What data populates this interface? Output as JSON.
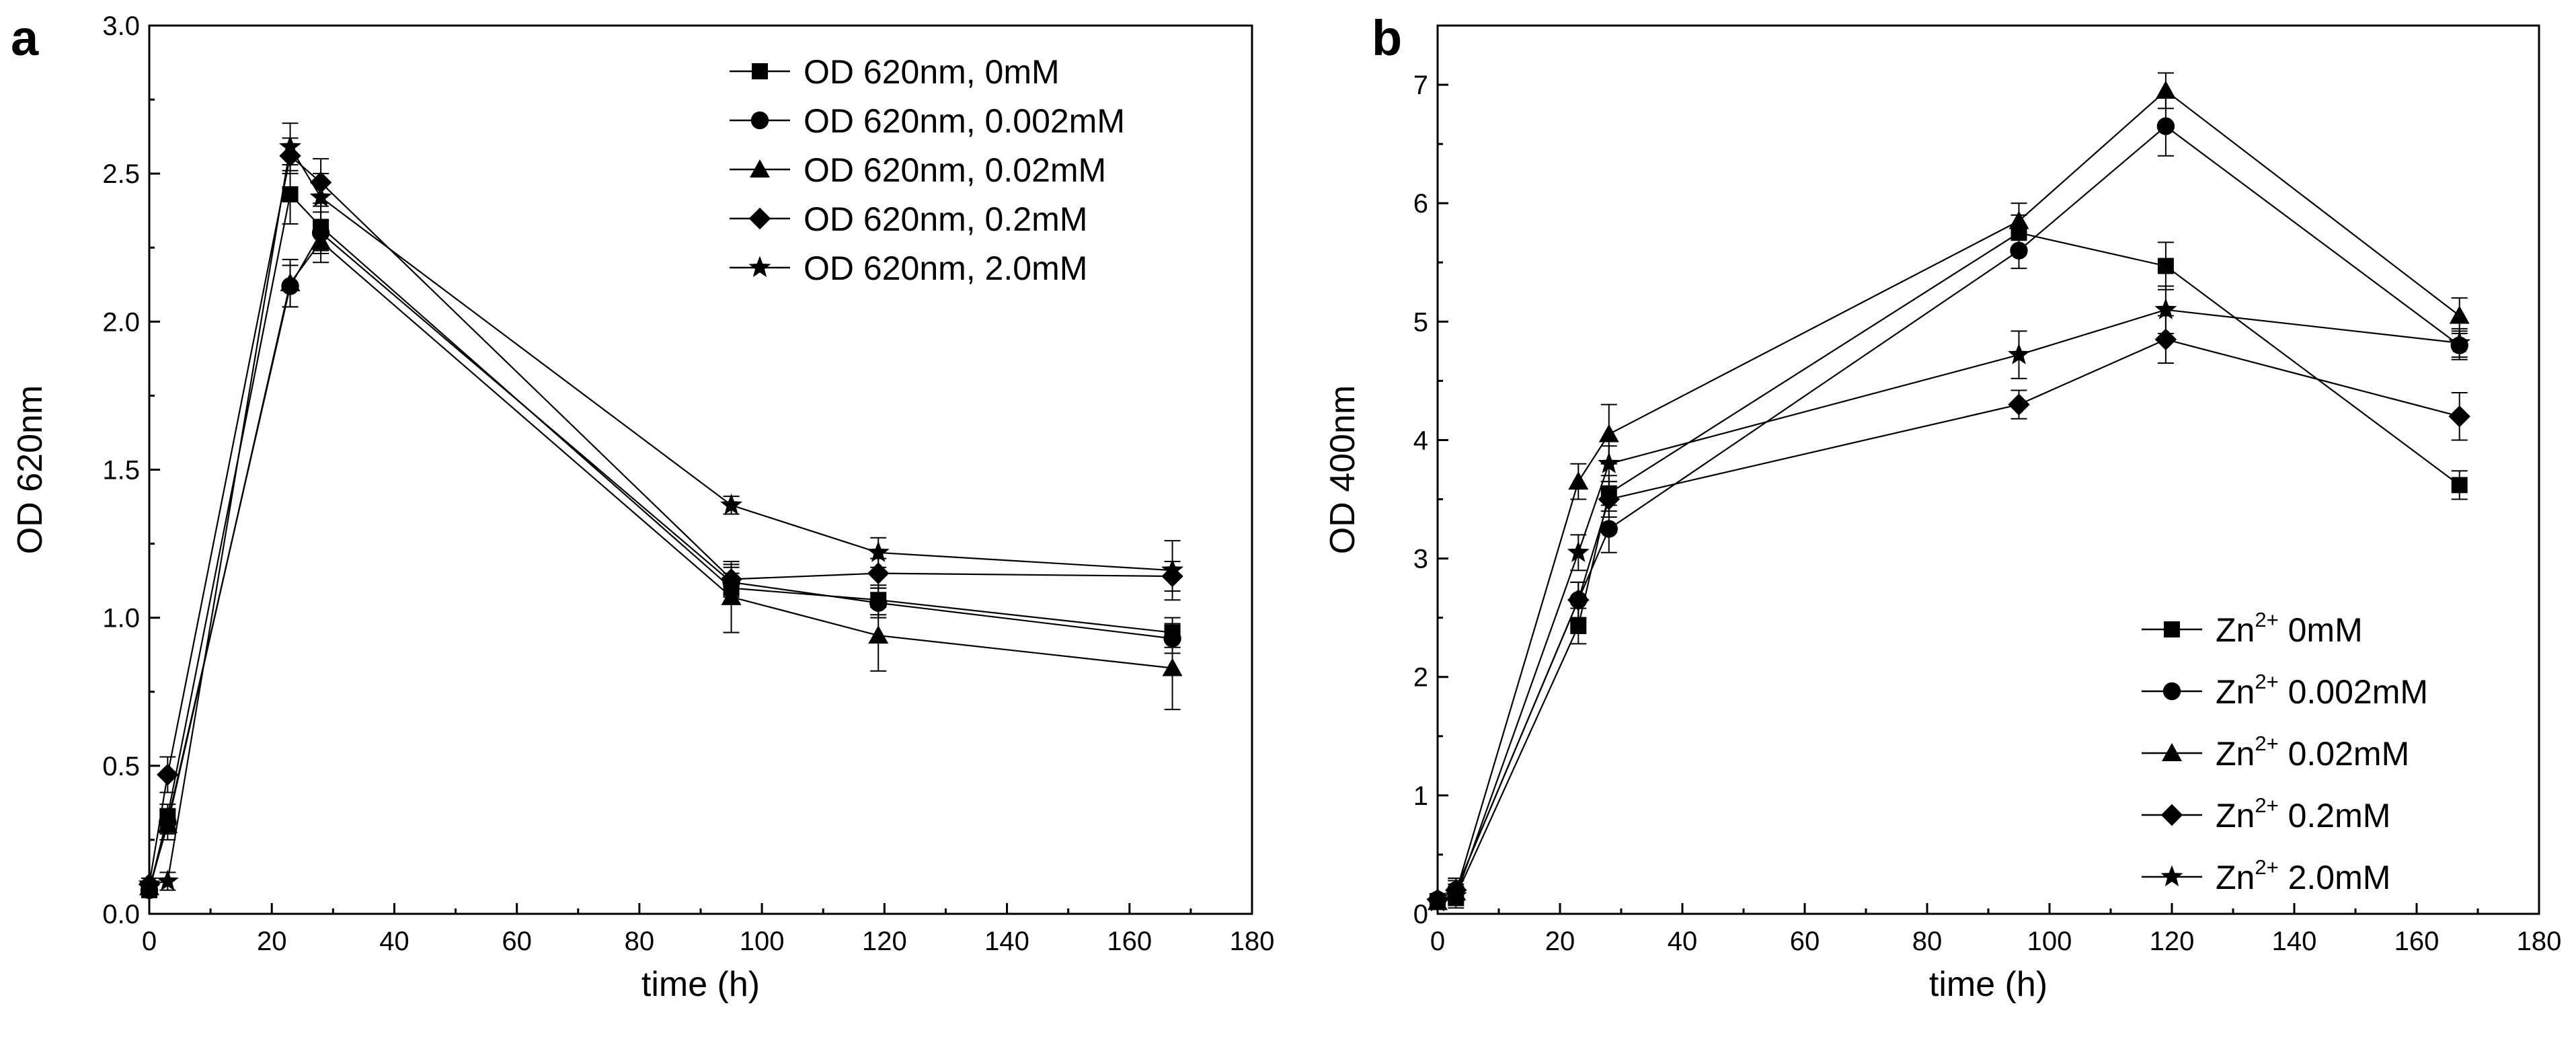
{
  "chart_data": [
    {
      "type": "line",
      "panel_label": "a",
      "xlabel": "time (h)",
      "ylabel": "OD 620nm",
      "xlim": [
        0,
        180
      ],
      "ylim": [
        0,
        3.0
      ],
      "xticks": [
        "0",
        "20",
        "40",
        "60",
        "80",
        "100",
        "120",
        "140",
        "160",
        "180"
      ],
      "yticks": [
        "0.0",
        "0.5",
        "1.0",
        "1.5",
        "2.0",
        "2.5",
        "3.0"
      ],
      "legend_position": "top-right",
      "x": [
        0,
        3,
        23,
        28,
        95,
        119,
        167
      ],
      "series": [
        {
          "name": "OD 620nm, 0mM",
          "legend": "OD 620nm, 0mM",
          "marker": "square",
          "values": [
            0.08,
            0.33,
            2.43,
            2.32,
            1.1,
            1.06,
            0.95
          ],
          "errors": [
            0.02,
            0.04,
            0.1,
            0.08,
            0.05,
            0.05,
            0.05
          ]
        },
        {
          "name": "OD 620nm, 0.002mM",
          "legend": "OD 620nm, 0.002mM",
          "marker": "circle",
          "values": [
            0.08,
            0.31,
            2.12,
            2.3,
            1.12,
            1.05,
            0.93
          ],
          "errors": [
            0.02,
            0.04,
            0.07,
            0.07,
            0.05,
            0.05,
            0.05
          ]
        },
        {
          "name": "OD 620nm, 0.02mM",
          "legend": "OD 620nm, 0.02mM",
          "marker": "triangle",
          "values": [
            0.09,
            0.3,
            2.13,
            2.27,
            1.07,
            0.94,
            0.83
          ],
          "errors": [
            0.02,
            0.05,
            0.08,
            0.07,
            0.12,
            0.12,
            0.14
          ]
        },
        {
          "name": "OD 620nm, 0.2mM",
          "legend": "OD 620nm, 0.2mM",
          "marker": "diamond",
          "values": [
            0.1,
            0.47,
            2.56,
            2.47,
            1.13,
            1.15,
            1.14
          ],
          "errors": [
            0.02,
            0.06,
            0.06,
            0.08,
            0.05,
            0.05,
            0.05
          ]
        },
        {
          "name": "OD 620nm, 2.0mM",
          "legend": "OD 620nm, 2.0mM",
          "marker": "star",
          "values": [
            0.1,
            0.11,
            2.59,
            2.42,
            1.38,
            1.22,
            1.16
          ],
          "errors": [
            0.02,
            0.03,
            0.08,
            0.08,
            0.03,
            0.05,
            0.1
          ]
        }
      ]
    },
    {
      "type": "line",
      "panel_label": "b",
      "xlabel": "time (h)",
      "ylabel": "OD 400nm",
      "xlim": [
        0,
        180
      ],
      "ylim": [
        0,
        7.5
      ],
      "xticks": [
        "0",
        "20",
        "40",
        "60",
        "80",
        "100",
        "120",
        "140",
        "160",
        "180"
      ],
      "yticks": [
        "0",
        "1",
        "2",
        "3",
        "4",
        "5",
        "6",
        "7"
      ],
      "legend_position": "bottom-right",
      "x": [
        0,
        3,
        23,
        28,
        95,
        119,
        167
      ],
      "series": [
        {
          "name": "Zn2+ 0mM",
          "legend": {
            "base": "Zn",
            "sup": "2+",
            "rest": " 0mM"
          },
          "marker": "square",
          "values": [
            0.1,
            0.15,
            2.43,
            3.55,
            5.75,
            5.47,
            3.62
          ],
          "errors": [
            0.05,
            0.1,
            0.15,
            0.15,
            0.15,
            0.2,
            0.12
          ]
        },
        {
          "name": "Zn2+ 0.002mM",
          "legend": {
            "base": "Zn",
            "sup": "2+",
            "rest": " 0.002mM"
          },
          "marker": "circle",
          "values": [
            0.12,
            0.2,
            2.65,
            3.25,
            5.6,
            6.65,
            4.8
          ],
          "errors": [
            0.05,
            0.1,
            0.15,
            0.2,
            0.15,
            0.25,
            0.12
          ]
        },
        {
          "name": "Zn2+ 0.02mM",
          "legend": {
            "base": "Zn",
            "sup": "2+",
            "rest": " 0.02mM"
          },
          "marker": "triangle",
          "values": [
            0.1,
            0.18,
            3.65,
            4.05,
            5.85,
            6.95,
            5.05
          ],
          "errors": [
            0.05,
            0.1,
            0.15,
            0.25,
            0.15,
            0.15,
            0.15
          ]
        },
        {
          "name": "Zn2+ 0.2mM",
          "legend": {
            "base": "Zn",
            "sup": "2+",
            "rest": " 0.2mM"
          },
          "marker": "diamond",
          "values": [
            0.12,
            0.2,
            2.65,
            3.5,
            4.3,
            4.85,
            4.2
          ],
          "errors": [
            0.05,
            0.1,
            0.15,
            0.15,
            0.12,
            0.2,
            0.2
          ]
        },
        {
          "name": "Zn2+ 2.0mM",
          "legend": {
            "base": "Zn",
            "sup": "2+",
            "rest": " 2.0mM"
          },
          "marker": "star",
          "values": [
            0.1,
            0.15,
            3.05,
            3.8,
            4.72,
            5.1,
            4.82
          ],
          "errors": [
            0.05,
            0.08,
            0.15,
            0.15,
            0.2,
            0.2,
            0.12
          ]
        }
      ]
    }
  ]
}
